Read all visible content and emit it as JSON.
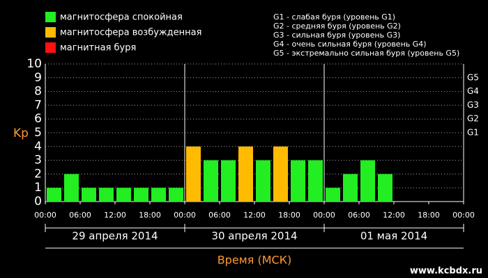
{
  "chart_data": {
    "type": "bar",
    "y_label": "Kp",
    "x_label": "Время (МСК)",
    "watermark": "www.kcbdx.ru",
    "legend": [
      {
        "label": "магнитосфера спокойная",
        "color": "#22ee22"
      },
      {
        "label": "магнитосфера возбужденная",
        "color": "#ffbb00"
      },
      {
        "label": "магнитная буря",
        "color": "#ff1111"
      }
    ],
    "storm_legend": [
      "G1 - слабая буря (уровень G1)",
      "G2 - средняя буря (уровень G2)",
      "G3 - сильная буря (уровень G3)",
      "G4 - очень сильная буря (уровень G4)",
      "G5 - экстремально сильная буря (уровень G5)"
    ],
    "storm_levels": [
      {
        "value": 5,
        "label": "G1"
      },
      {
        "value": 6,
        "label": "G2"
      },
      {
        "value": 7,
        "label": "G3"
      },
      {
        "value": 8,
        "label": "G4"
      },
      {
        "value": 9,
        "label": "G5"
      }
    ],
    "days": [
      "29 апреля 2014",
      "30 апреля 2014",
      "01 мая 2014"
    ],
    "x": [
      0,
      3,
      6,
      9,
      12,
      15,
      18,
      21,
      24,
      27,
      30,
      33,
      36,
      39,
      42,
      45,
      48,
      51,
      54,
      57,
      60,
      63,
      66,
      69
    ],
    "bar_width": 3,
    "values": [
      1,
      2,
      1,
      1,
      1,
      1,
      1,
      1,
      4,
      3,
      3,
      4,
      3,
      4,
      3,
      3,
      1,
      2,
      3,
      2,
      null,
      null,
      null,
      null
    ],
    "bar_colors": [
      "#22ee22",
      "#22ee22",
      "#22ee22",
      "#22ee22",
      "#22ee22",
      "#22ee22",
      "#22ee22",
      "#22ee22",
      "#ffbb00",
      "#22ee22",
      "#22ee22",
      "#ffbb00",
      "#22ee22",
      "#ffbb00",
      "#22ee22",
      "#22ee22",
      "#22ee22",
      "#22ee22",
      "#22ee22",
      "#22ee22",
      null,
      null,
      null,
      null
    ],
    "xlim": [
      0,
      72
    ],
    "xticks": [
      {
        "value": 0,
        "label": "00:00"
      },
      {
        "value": 6,
        "label": "06:00"
      },
      {
        "value": 12,
        "label": "12:00"
      },
      {
        "value": 18,
        "label": "18:00"
      },
      {
        "value": 24,
        "label": "00:00"
      },
      {
        "value": 30,
        "label": "06:00"
      },
      {
        "value": 36,
        "label": "12:00"
      },
      {
        "value": 42,
        "label": "18:00"
      },
      {
        "value": 48,
        "label": "00:00"
      },
      {
        "value": 54,
        "label": "06:00"
      },
      {
        "value": 60,
        "label": "12:00"
      },
      {
        "value": 66,
        "label": "18:00"
      },
      {
        "value": 72,
        "label": "00:00"
      }
    ],
    "ylim": [
      0,
      10
    ],
    "yticks": [
      0,
      1,
      2,
      3,
      4,
      5,
      6,
      7,
      8,
      9,
      10
    ],
    "grid": true
  }
}
